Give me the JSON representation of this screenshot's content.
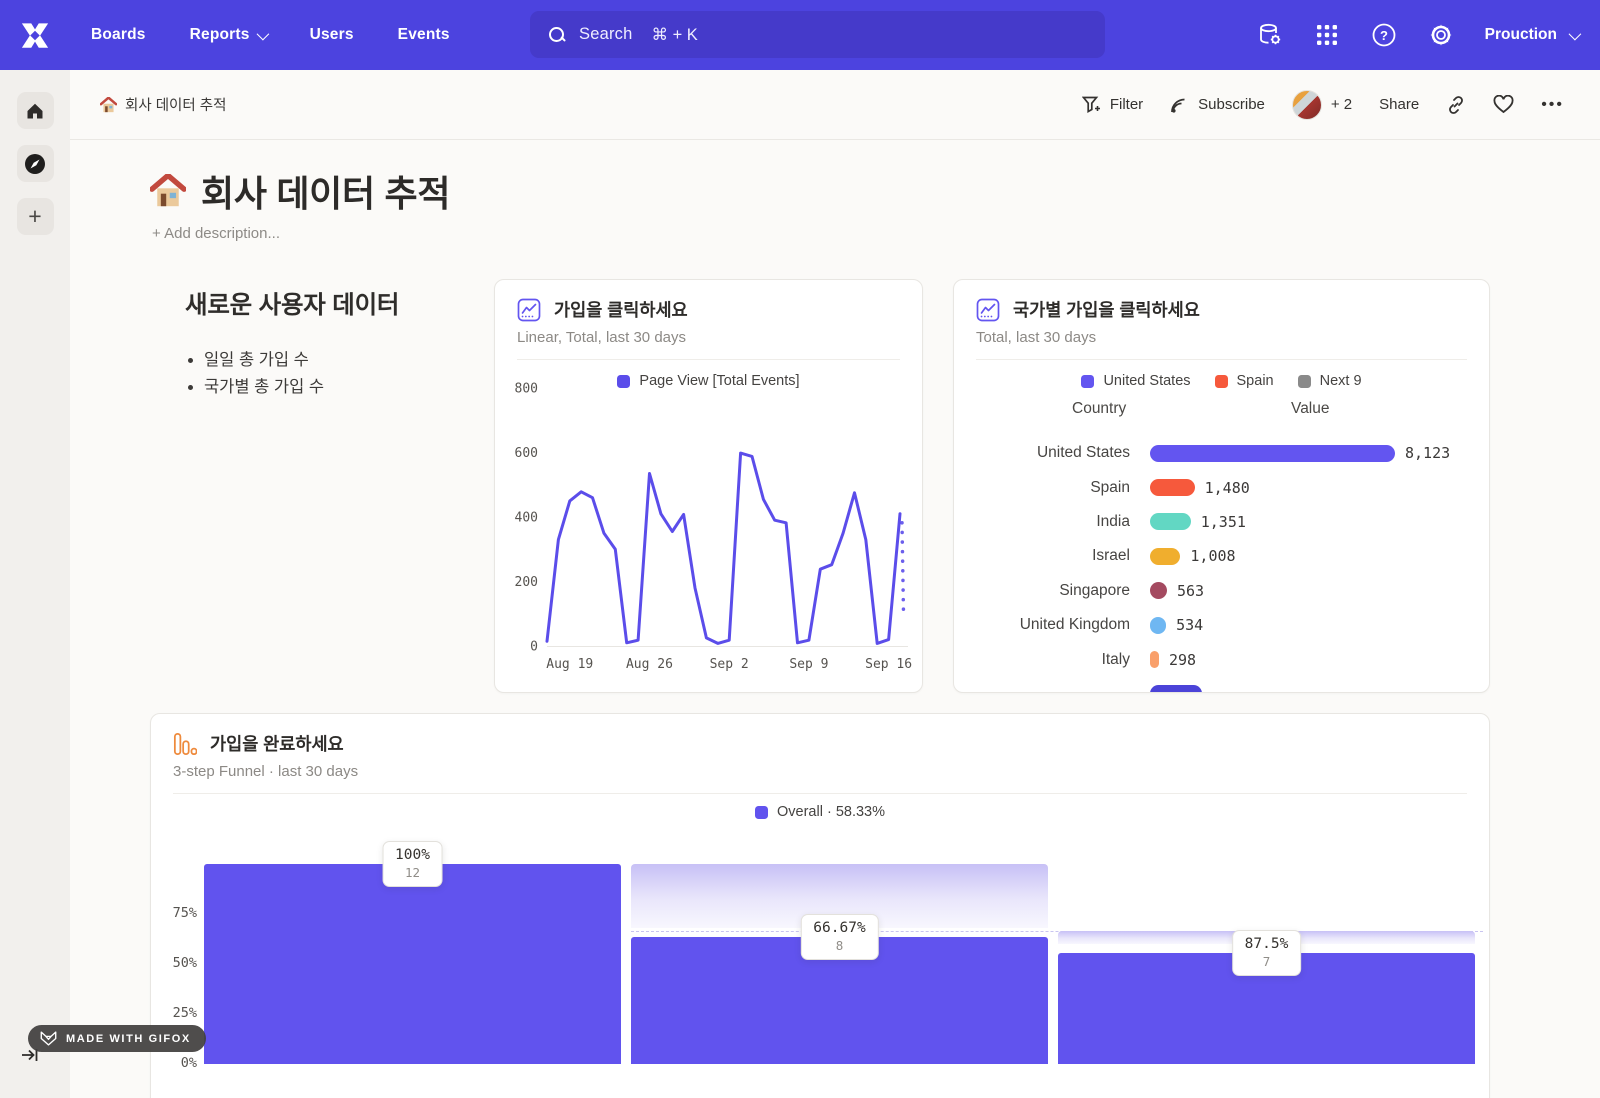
{
  "colors": {
    "navbar": "#4C43DF",
    "search_field": "#453ACA",
    "accent_purple": "#5B4DEA",
    "funnel_purple": "#6153EE"
  },
  "topbar": {
    "nav": [
      "Boards",
      "Reports",
      "Users",
      "Events"
    ],
    "search_label": "Search",
    "search_shortcut": "⌘ + K",
    "project": "Prouction"
  },
  "subheader": {
    "breadcrumb": "회사 데이터 추적",
    "filter": "Filter",
    "subscribe": "Subscribe",
    "avatar_more": "+ 2",
    "share": "Share"
  },
  "page": {
    "emoji": "🏠",
    "title": "회사 데이터 추적",
    "add_description": "+ Add description..."
  },
  "text_widget": {
    "heading": "새로운 사용자 데이터",
    "bullets": [
      "일일 총 가입 수",
      "국가별 총 가입 수"
    ]
  },
  "chart_data": [
    {
      "id": "page-view-line",
      "type": "line",
      "title": "가입을 클릭하세요",
      "subtitle": "Linear, Total, last 30 days",
      "legend": "Page View [Total Events]",
      "series_color": "#5B4DEA",
      "ylim": [
        0,
        800
      ],
      "y_ticks": [
        800,
        600,
        400,
        200,
        0
      ],
      "x_ticks": [
        "Aug 19",
        "Aug 26",
        "Sep 2",
        "Sep 9",
        "Sep 16"
      ],
      "x_tick_indices": [
        2,
        9,
        16,
        23,
        30
      ],
      "values": [
        15,
        330,
        450,
        478,
        460,
        350,
        300,
        10,
        18,
        535,
        410,
        355,
        408,
        180,
        25,
        8,
        18,
        598,
        588,
        455,
        390,
        382,
        10,
        18,
        238,
        252,
        350,
        475,
        330,
        8,
        20,
        410
      ],
      "projection_dotted": [
        410,
        100
      ]
    },
    {
      "id": "signups-by-country",
      "type": "bar",
      "title": "국가별 가입을 클릭하세요",
      "subtitle": "Total, last 30 days",
      "legend": [
        {
          "label": "United States",
          "color": "#6355F0"
        },
        {
          "label": "Spain",
          "color": "#F6593C"
        },
        {
          "label": "Next 9",
          "color": "#8A8A8A"
        }
      ],
      "columns": {
        "country": "Country",
        "value": "Value"
      },
      "rows": [
        {
          "country": "United States",
          "value": "8,123",
          "num": 8123,
          "color": "#6355F0"
        },
        {
          "country": "Spain",
          "value": "1,480",
          "num": 1480,
          "color": "#F6593C"
        },
        {
          "country": "India",
          "value": "1,351",
          "num": 1351,
          "color": "#62D7C3"
        },
        {
          "country": "Israel",
          "value": "1,008",
          "num": 1008,
          "color": "#F0AE2E"
        },
        {
          "country": "Singapore",
          "value": "563",
          "num": 563,
          "color": "#A44A60"
        },
        {
          "country": "United Kingdom",
          "value": "534",
          "num": 534,
          "color": "#6FB7F2"
        },
        {
          "country": "Italy",
          "value": "298",
          "num": 298,
          "color": "#F9A06B"
        }
      ],
      "clipped_next_row_color": "#4B43D8"
    },
    {
      "id": "signup-funnel",
      "type": "funnel",
      "title": "가입을 완료하세요",
      "subtitle": "3-step Funnel · last 30 days",
      "legend": "Overall · 58.33%",
      "legend_color": "#6153EE",
      "y_ticks": [
        "75%",
        "50%",
        "25%",
        "0%"
      ],
      "steps": [
        {
          "label": "100%",
          "count": "12",
          "overall_pct": 100
        },
        {
          "label": "66.67%",
          "count": "8",
          "overall_pct": 66.67
        },
        {
          "label": "87.5%",
          "count": "7",
          "overall_pct": 58.33
        }
      ]
    }
  ],
  "badge": {
    "label": "MADE WITH GIFOX"
  }
}
